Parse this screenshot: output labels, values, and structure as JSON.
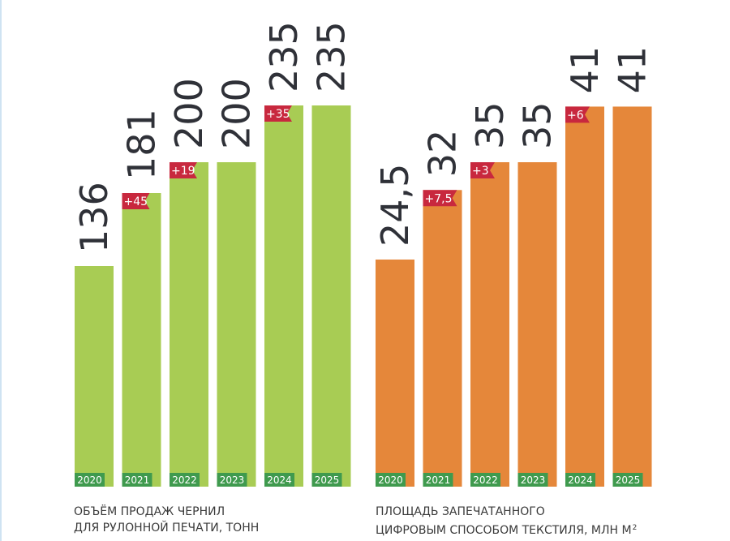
{
  "chart_data": [
    {
      "type": "bar",
      "categories": [
        "2020",
        "2021",
        "2022",
        "2023",
        "2024",
        "2025"
      ],
      "values": [
        136,
        181,
        200,
        200,
        235,
        235
      ],
      "value_labels": [
        "136",
        "181",
        "200",
        "200",
        "235",
        "235"
      ],
      "increments": [
        null,
        "+45",
        "+19",
        null,
        "+35",
        null
      ],
      "title_lines": [
        "ОБЪЁМ ПРОДАЖ ЧЕРНИЛ",
        "ДЛЯ РУЛОННОЙ ПЕЧАТИ, ТОНН"
      ],
      "color": "#a8cc54",
      "ylim": [
        0,
        300
      ]
    },
    {
      "type": "bar",
      "categories": [
        "2020",
        "2021",
        "2022",
        "2023",
        "2024",
        "2025"
      ],
      "values": [
        24.5,
        32,
        35,
        35,
        41,
        41
      ],
      "value_labels": [
        "24,5",
        "32",
        "35",
        "35",
        "41",
        "41"
      ],
      "increments": [
        null,
        "+7,5",
        "+3",
        null,
        "+6",
        null
      ],
      "title_lines": [
        "ПЛОЩАДЬ ЗАПЕЧАТАННОГО",
        "ЦИФРОВЫМ СПОСОБОМ ТЕКСТИЛЯ, МЛН М"
      ],
      "title_superscript": "2",
      "color": "#e5873a",
      "ylim": [
        0,
        52.5
      ]
    }
  ],
  "colors": {
    "year_badge": "#3f9a4e",
    "increment_flag": "#c8283e",
    "value_text": "#2f3138"
  }
}
